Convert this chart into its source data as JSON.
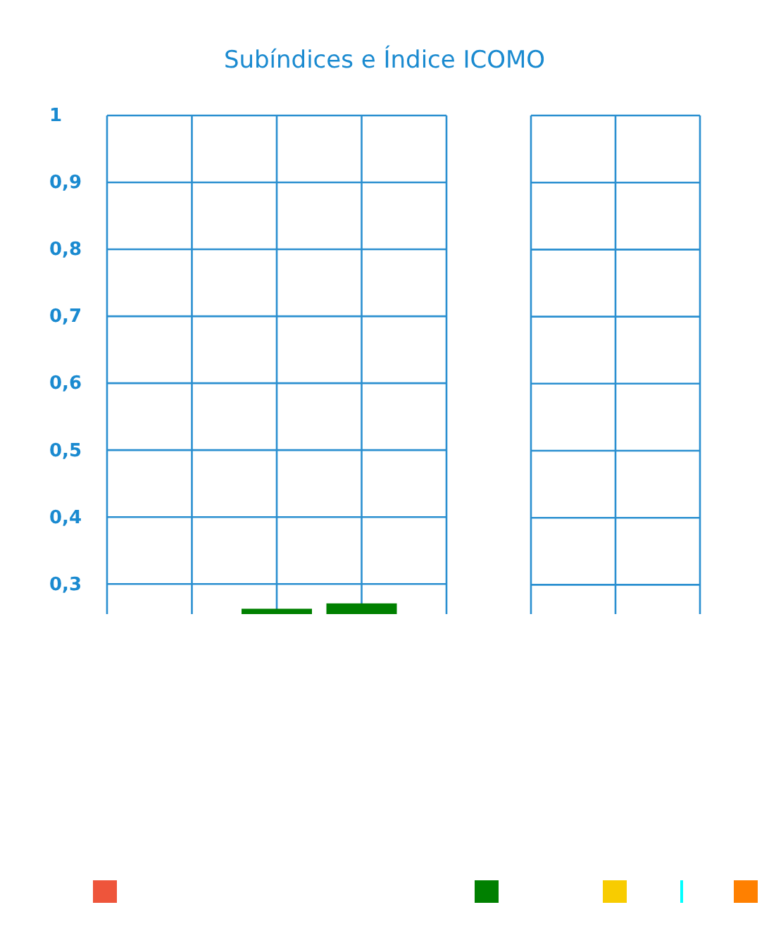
{
  "chart_data": [
    {
      "type": "bar",
      "title": "Subíndices e Índice ICOMO",
      "categories": [
        null,
        null,
        null,
        null,
        null
      ],
      "ylim": [
        0.255,
        1
      ],
      "yticks": [
        {
          "value": 0.3,
          "label": "0,3"
        },
        {
          "value": 0.4,
          "label": "0,4"
        },
        {
          "value": 0.5,
          "label": "0,5"
        },
        {
          "value": 0.6,
          "label": "0,6"
        },
        {
          "value": 0.7,
          "label": "0,7"
        },
        {
          "value": 0.8,
          "label": "0,8"
        },
        {
          "value": 0.9,
          "label": "0,9"
        },
        1
      ],
      "grid": true,
      "tick_labels": "y",
      "color": "#008000",
      "values": [
        null,
        null,
        0.263,
        0.271,
        null
      ]
    },
    {
      "type": "other"
    }
  ]
}
